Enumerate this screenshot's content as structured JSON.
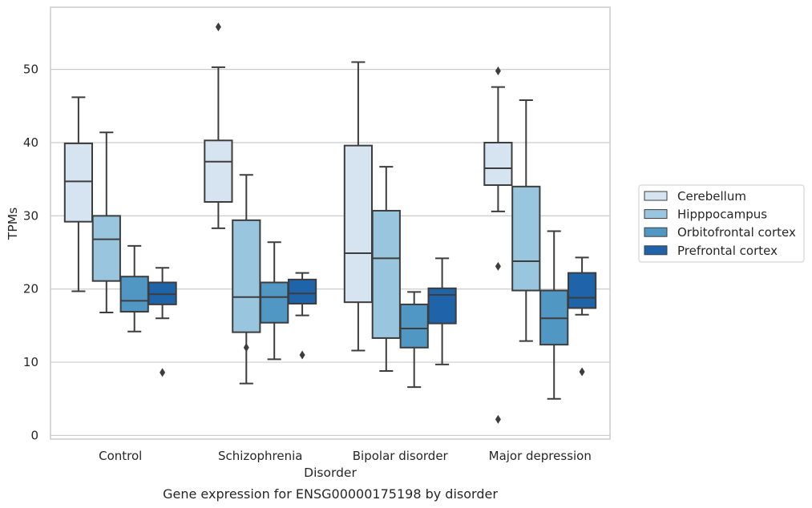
{
  "caption": "Gene expression for ENSG00000175198 by disorder",
  "chart_data": {
    "type": "box",
    "xlabel": "Disorder",
    "ylabel": "TPMs",
    "categories": [
      "Control",
      "Schizophrenia",
      "Bipolar disorder",
      "Major depression"
    ],
    "ylim": [
      -0.5,
      58.5
    ],
    "yticks": [
      0,
      10,
      20,
      30,
      40,
      50
    ],
    "grid": "horizontal",
    "legend_position": "right",
    "series": [
      {
        "name": "Cerebellum",
        "color": "#d6e4f1",
        "boxes": [
          {
            "whislo": 19.7,
            "q1": 29.2,
            "med": 34.7,
            "q3": 39.9,
            "whishi": 46.2,
            "fliers": []
          },
          {
            "whislo": 28.3,
            "q1": 31.9,
            "med": 37.4,
            "q3": 40.3,
            "whishi": 50.3,
            "fliers": [
              55.8
            ]
          },
          {
            "whislo": 11.6,
            "q1": 18.2,
            "med": 24.9,
            "q3": 39.6,
            "whishi": 51.0,
            "fliers": []
          },
          {
            "whislo": 30.6,
            "q1": 34.2,
            "med": 36.5,
            "q3": 40.0,
            "whishi": 47.6,
            "fliers": [
              49.8,
              23.1,
              2.2
            ]
          }
        ]
      },
      {
        "name": "Hipppocampus",
        "color": "#9ac5de",
        "boxes": [
          {
            "whislo": 16.8,
            "q1": 21.1,
            "med": 26.8,
            "q3": 30.0,
            "whishi": 41.4,
            "fliers": []
          },
          {
            "whislo": 7.1,
            "q1": 14.1,
            "med": 18.9,
            "q3": 29.4,
            "whishi": 35.6,
            "fliers": [
              12.0
            ]
          },
          {
            "whislo": 8.8,
            "q1": 13.3,
            "med": 24.2,
            "q3": 30.7,
            "whishi": 36.7,
            "fliers": []
          },
          {
            "whislo": 12.9,
            "q1": 19.8,
            "med": 23.8,
            "q3": 34.0,
            "whishi": 45.8,
            "fliers": []
          }
        ]
      },
      {
        "name": "Orbitofrontal cortex",
        "color": "#5097c4",
        "boxes": [
          {
            "whislo": 14.2,
            "q1": 16.9,
            "med": 18.4,
            "q3": 21.7,
            "whishi": 25.9,
            "fliers": []
          },
          {
            "whislo": 10.4,
            "q1": 15.4,
            "med": 18.9,
            "q3": 20.9,
            "whishi": 26.4,
            "fliers": []
          },
          {
            "whislo": 6.6,
            "q1": 12.0,
            "med": 14.6,
            "q3": 17.9,
            "whishi": 19.6,
            "fliers": []
          },
          {
            "whislo": 5.0,
            "q1": 12.4,
            "med": 16.0,
            "q3": 19.8,
            "whishi": 27.9,
            "fliers": []
          }
        ]
      },
      {
        "name": "Prefrontal cortex",
        "color": "#1f63a8",
        "boxes": [
          {
            "whislo": 16.0,
            "q1": 17.9,
            "med": 19.3,
            "q3": 20.9,
            "whishi": 22.9,
            "fliers": [
              8.6
            ]
          },
          {
            "whislo": 16.4,
            "q1": 18.0,
            "med": 19.4,
            "q3": 21.3,
            "whishi": 22.2,
            "fliers": [
              11.0
            ]
          },
          {
            "whislo": 9.7,
            "q1": 15.3,
            "med": 19.2,
            "q3": 20.1,
            "whishi": 24.2,
            "fliers": []
          },
          {
            "whislo": 16.5,
            "q1": 17.4,
            "med": 18.8,
            "q3": 22.2,
            "whishi": 24.3,
            "fliers": [
              8.7
            ]
          }
        ]
      }
    ]
  }
}
